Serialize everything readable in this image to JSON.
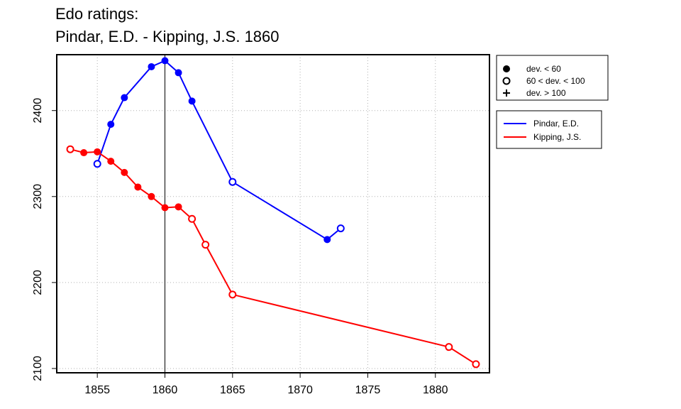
{
  "title_line1": "Edo ratings:",
  "title_line2": "Pindar, E.D. - Kipping, J.S. 1860",
  "legend_markers": [
    {
      "marker": "filled-circle",
      "label": "dev. < 60"
    },
    {
      "marker": "open-circle",
      "label": "60 < dev. < 100"
    },
    {
      "marker": "plus",
      "label": "dev. > 100"
    }
  ],
  "chart_data": {
    "type": "line",
    "title": "Edo ratings:\nPindar, E.D. - Kipping, J.S. 1860",
    "xlabel": "",
    "ylabel": "",
    "xlim": [
      1852,
      1884
    ],
    "ylim": [
      2095,
      2465
    ],
    "x_ticks": [
      1855,
      1860,
      1865,
      1870,
      1875,
      1880
    ],
    "y_ticks": [
      2100,
      2200,
      2300,
      2400
    ],
    "grid": true,
    "vertical_marker_x": 1860,
    "legend_position": "outside-right",
    "series": [
      {
        "name": "Pindar, E.D.",
        "color": "#0000ff",
        "points": [
          {
            "x": 1855,
            "y": 2338,
            "marker": "open-circle"
          },
          {
            "x": 1856,
            "y": 2384,
            "marker": "filled-circle"
          },
          {
            "x": 1857,
            "y": 2415,
            "marker": "filled-circle"
          },
          {
            "x": 1859,
            "y": 2451,
            "marker": "filled-circle"
          },
          {
            "x": 1860,
            "y": 2458,
            "marker": "filled-circle"
          },
          {
            "x": 1861,
            "y": 2444,
            "marker": "filled-circle"
          },
          {
            "x": 1862,
            "y": 2411,
            "marker": "filled-circle"
          },
          {
            "x": 1865,
            "y": 2317,
            "marker": "open-circle"
          },
          {
            "x": 1872,
            "y": 2250,
            "marker": "filled-circle"
          },
          {
            "x": 1873,
            "y": 2263,
            "marker": "open-circle"
          }
        ]
      },
      {
        "name": "Kipping, J.S.",
        "color": "#ff0000",
        "points": [
          {
            "x": 1853,
            "y": 2355,
            "marker": "open-circle"
          },
          {
            "x": 1854,
            "y": 2351,
            "marker": "filled-circle"
          },
          {
            "x": 1855,
            "y": 2352,
            "marker": "filled-circle"
          },
          {
            "x": 1856,
            "y": 2341,
            "marker": "filled-circle"
          },
          {
            "x": 1857,
            "y": 2328,
            "marker": "filled-circle"
          },
          {
            "x": 1858,
            "y": 2311,
            "marker": "filled-circle"
          },
          {
            "x": 1859,
            "y": 2300,
            "marker": "filled-circle"
          },
          {
            "x": 1860,
            "y": 2287,
            "marker": "filled-circle"
          },
          {
            "x": 1861,
            "y": 2288,
            "marker": "filled-circle"
          },
          {
            "x": 1862,
            "y": 2274,
            "marker": "open-circle"
          },
          {
            "x": 1863,
            "y": 2244,
            "marker": "open-circle"
          },
          {
            "x": 1865,
            "y": 2186,
            "marker": "open-circle"
          },
          {
            "x": 1881,
            "y": 2125,
            "marker": "open-circle"
          },
          {
            "x": 1883,
            "y": 2105,
            "marker": "open-circle"
          }
        ]
      }
    ]
  }
}
